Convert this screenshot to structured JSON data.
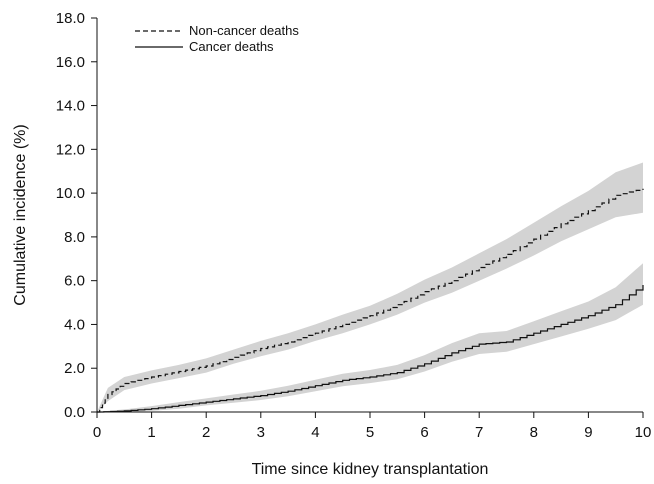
{
  "chart_data": {
    "type": "line",
    "xlabel": "Time since kidney transplantation",
    "ylabel": "Cumulative incidence (%)",
    "xlim": [
      0,
      10
    ],
    "ylim": [
      0,
      18
    ],
    "x_ticks": [
      "0",
      "1",
      "2",
      "3",
      "4",
      "5",
      "6",
      "7",
      "8",
      "9",
      "10"
    ],
    "y_ticks": [
      "0.0",
      "2.0",
      "4.0",
      "6.0",
      "8.0",
      "10.0",
      "12.0",
      "14.0",
      "16.0",
      "18.0"
    ],
    "grid": false,
    "legend_position": "top-left",
    "series": [
      {
        "name": "Non-cancer deaths",
        "line_style": "dashed",
        "color": "#111111",
        "band_color": "#d3d3d3",
        "x": [
          0,
          0.2,
          0.5,
          1,
          1.5,
          2,
          2.5,
          3,
          3.5,
          4,
          4.5,
          5,
          5.5,
          6,
          6.5,
          7,
          7.5,
          8,
          8.5,
          9,
          9.5,
          10
        ],
        "y": [
          0,
          0.8,
          1.3,
          1.6,
          1.85,
          2.1,
          2.5,
          2.9,
          3.2,
          3.6,
          4.0,
          4.4,
          4.9,
          5.5,
          6.0,
          6.6,
          7.2,
          7.9,
          8.6,
          9.2,
          9.9,
          10.2
        ],
        "lower": [
          0,
          0.5,
          1.0,
          1.3,
          1.55,
          1.8,
          2.2,
          2.55,
          2.85,
          3.25,
          3.6,
          4.0,
          4.45,
          5.0,
          5.45,
          6.0,
          6.55,
          7.15,
          7.8,
          8.35,
          8.9,
          9.1
        ],
        "upper": [
          0,
          1.1,
          1.6,
          1.9,
          2.15,
          2.45,
          2.85,
          3.25,
          3.6,
          4.0,
          4.45,
          4.85,
          5.4,
          6.05,
          6.6,
          7.25,
          7.9,
          8.65,
          9.4,
          10.1,
          10.95,
          11.4
        ]
      },
      {
        "name": "Cancer deaths",
        "line_style": "solid",
        "color": "#111111",
        "band_color": "#d3d3d3",
        "x": [
          0,
          0.5,
          1,
          1.5,
          2,
          2.5,
          3,
          3.5,
          4,
          4.5,
          5,
          5.5,
          6,
          6.5,
          7,
          7.5,
          8,
          8.5,
          9,
          9.5,
          10
        ],
        "y": [
          0,
          0.05,
          0.15,
          0.3,
          0.45,
          0.6,
          0.75,
          0.95,
          1.2,
          1.45,
          1.6,
          1.8,
          2.2,
          2.7,
          3.1,
          3.2,
          3.6,
          4.0,
          4.4,
          4.9,
          5.8
        ],
        "lower": [
          0,
          0.0,
          0.05,
          0.15,
          0.3,
          0.42,
          0.55,
          0.72,
          0.95,
          1.18,
          1.32,
          1.5,
          1.85,
          2.3,
          2.65,
          2.75,
          3.1,
          3.45,
          3.8,
          4.2,
          4.9
        ],
        "upper": [
          0,
          0.12,
          0.27,
          0.45,
          0.62,
          0.8,
          0.97,
          1.2,
          1.47,
          1.75,
          1.92,
          2.15,
          2.6,
          3.15,
          3.6,
          3.7,
          4.15,
          4.6,
          5.05,
          5.7,
          6.8
        ]
      }
    ]
  }
}
